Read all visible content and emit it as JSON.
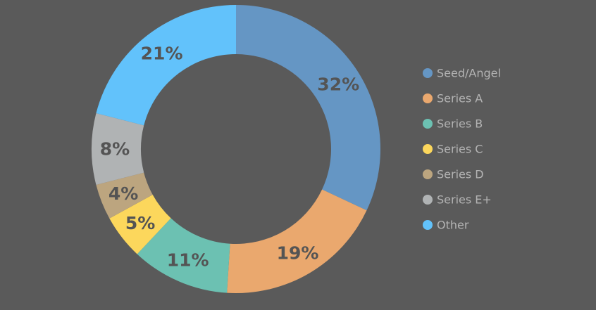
{
  "chart_data": {
    "type": "pie",
    "donut": true,
    "legend_position": "right",
    "categories": [
      "Seed/Angel",
      "Series A",
      "Series B",
      "Series C",
      "Series D",
      "Series E+",
      "Other"
    ],
    "values": [
      32,
      19,
      11,
      5,
      4,
      8,
      21
    ],
    "labels": [
      "32%",
      "19%",
      "11%",
      "5%",
      "4%",
      "8%",
      "21%"
    ],
    "colors": [
      "#6596c4",
      "#eaa86e",
      "#6cc1b2",
      "#fcd75c",
      "#bca57f",
      "#b0b3b4",
      "#62c2fb"
    ]
  }
}
